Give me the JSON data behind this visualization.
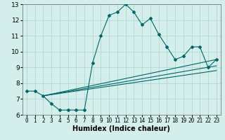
{
  "xlabel": "Humidex (Indice chaleur)",
  "xlim": [
    -0.5,
    23.5
  ],
  "ylim": [
    6,
    13
  ],
  "xticks": [
    0,
    1,
    2,
    3,
    4,
    5,
    6,
    7,
    8,
    9,
    10,
    11,
    12,
    13,
    14,
    15,
    16,
    17,
    18,
    19,
    20,
    21,
    22,
    23
  ],
  "yticks": [
    6,
    7,
    8,
    9,
    10,
    11,
    12,
    13
  ],
  "bg_color": "#d4eeec",
  "grid_color": "#b0d8d4",
  "line_color": "#006666",
  "main_series_x": [
    0,
    1,
    2,
    3,
    4,
    5,
    6,
    7,
    8,
    9,
    10,
    11,
    12,
    13,
    14,
    15,
    16,
    17,
    18,
    19,
    20,
    21,
    22,
    23
  ],
  "main_series_y": [
    7.5,
    7.5,
    7.2,
    6.7,
    6.3,
    6.3,
    6.3,
    6.3,
    9.3,
    11.0,
    12.3,
    12.5,
    13.0,
    12.5,
    11.7,
    12.1,
    11.1,
    10.3,
    9.5,
    9.7,
    10.3,
    10.3,
    9.0,
    9.5
  ],
  "line1_x": [
    2,
    23
  ],
  "line1_y": [
    7.2,
    8.8
  ],
  "line2_x": [
    2,
    23
  ],
  "line2_y": [
    7.2,
    9.1
  ],
  "line3_x": [
    2,
    23
  ],
  "line3_y": [
    7.2,
    9.5
  ],
  "xlabel_fontsize": 7,
  "tick_fontsize": 5.5,
  "ytick_fontsize": 6.5
}
